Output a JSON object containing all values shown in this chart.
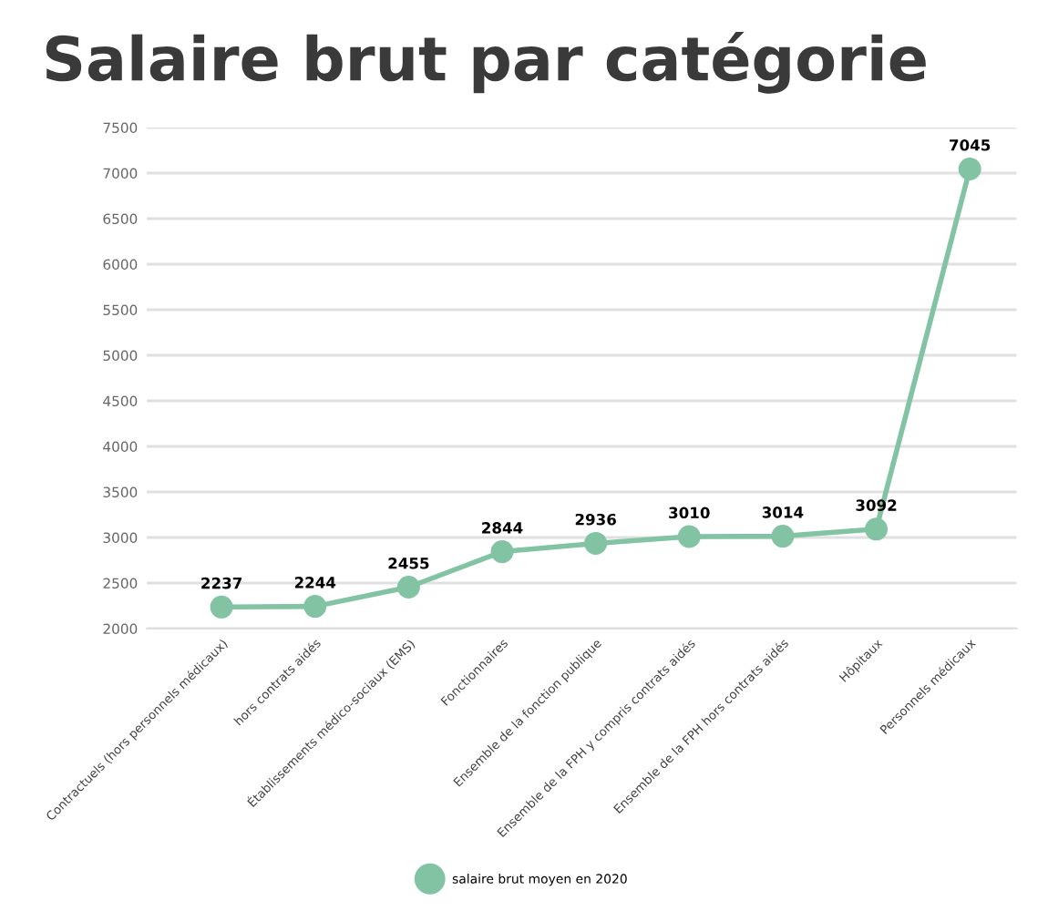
{
  "chart_data": {
    "type": "line",
    "title": "Salaire brut par catégorie",
    "categories": [
      "Contractuels (hors personnels médicaux)",
      "hors contrats aidés",
      "Établissements médico-sociaux (EMS)",
      "Fonctionnaires",
      "Ensemble de la fonction publique",
      "Ensemble de la FPH y compris contrats aidés",
      "Ensemble de la FPH hors contrats aidés",
      "Hôpitaux",
      "Personnels médicaux"
    ],
    "series": [
      {
        "name": "salaire brut moyen en 2020",
        "color": "#82c3a3",
        "values": [
          2237,
          2244,
          2455,
          2844,
          2936,
          3010,
          3014,
          3092,
          7045
        ]
      }
    ],
    "ylim": [
      2000,
      7500
    ],
    "yticks": [
      2000,
      2500,
      3000,
      3500,
      4000,
      4500,
      5000,
      5500,
      6000,
      6500,
      7000,
      7500
    ],
    "grid": "y",
    "legend": "bottom",
    "marker": "circle",
    "line_style": "solid",
    "data_labels": true
  }
}
